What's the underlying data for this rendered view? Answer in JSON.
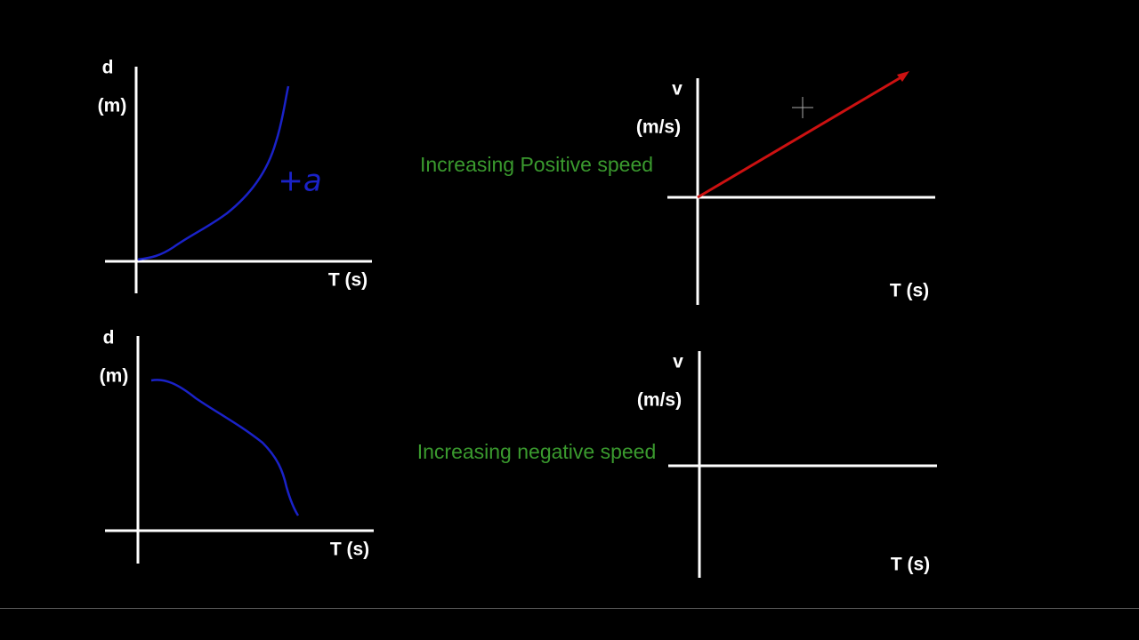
{
  "panels": [
    {
      "y_label": "d",
      "y_unit": "(m)",
      "x_label": "T (s)",
      "annotation": "+a"
    },
    {
      "y_label": "d",
      "y_unit": "(m)",
      "x_label": "T (s)"
    },
    {
      "y_label": "v",
      "y_unit": "(m/s)",
      "x_label": "T (s)",
      "caption": "Increasing Positive speed"
    },
    {
      "y_label": "v",
      "y_unit": "(m/s)",
      "x_label": "T (s)",
      "caption": "Increasing negative speed"
    }
  ]
}
